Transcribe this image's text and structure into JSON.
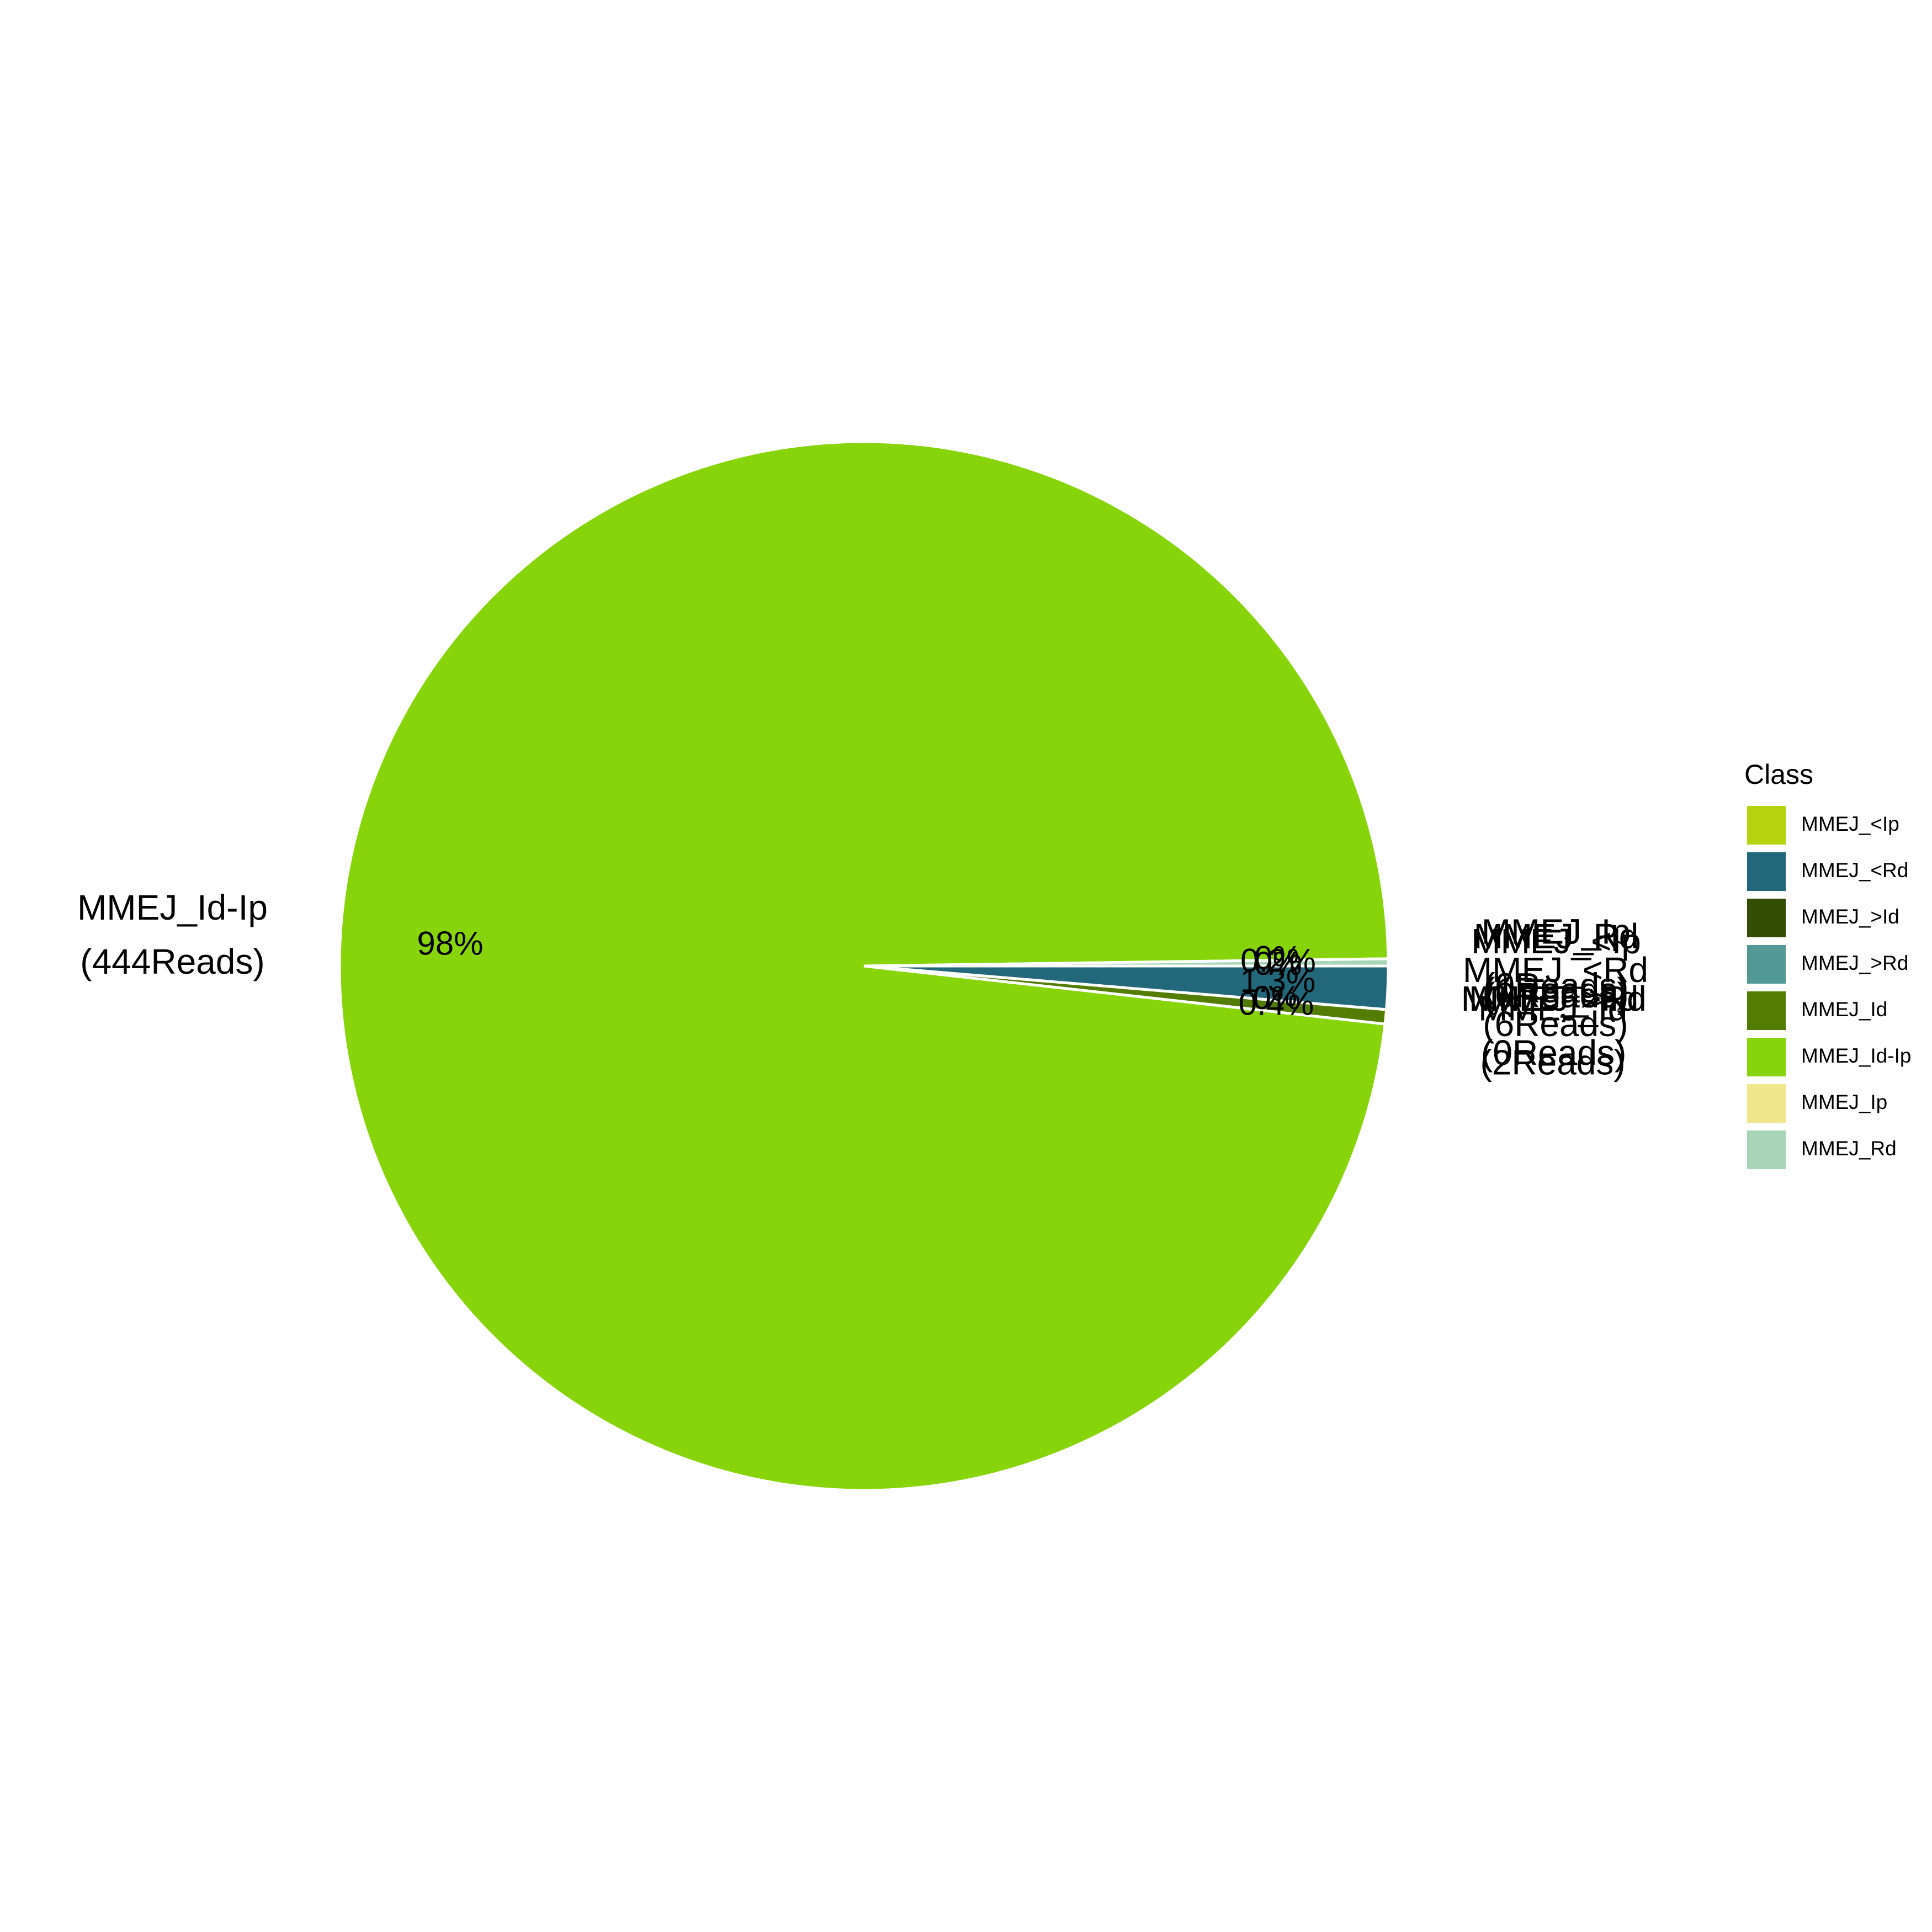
{
  "chart_data": {
    "type": "pie",
    "legend_title": "Class",
    "legend_position": "right",
    "slices": [
      {
        "name": "MMEJ_<Ip",
        "reads": 0,
        "reads_label": "(0Reads)",
        "percent_label": "0%",
        "color": "#B5D40F"
      },
      {
        "name": "MMEJ_<Rd",
        "reads": 6,
        "reads_label": "(6Reads)",
        "percent_label": "1.3%",
        "color": "#22687A"
      },
      {
        "name": "MMEJ_>Id",
        "reads": 0,
        "reads_label": "(0Reads)",
        "percent_label": "0%",
        "color": "#334D03"
      },
      {
        "name": "MMEJ_>Rd",
        "reads": 0,
        "reads_label": "(0Reads)",
        "percent_label": "0%",
        "color": "#529996"
      },
      {
        "name": "MMEJ_Id",
        "reads": 2,
        "reads_label": "(2Reads)",
        "percent_label": "0.4%",
        "color": "#527D02"
      },
      {
        "name": "MMEJ_Id-Ip",
        "reads": 444,
        "reads_label": "(444Reads)",
        "percent_label": "98%",
        "color": "#87D40A"
      },
      {
        "name": "MMEJ_Ip",
        "reads": 0,
        "reads_label": "(0Reads)",
        "percent_label": "0%",
        "color": "#F0E68C"
      },
      {
        "name": "MMEJ_Rd",
        "reads": 1,
        "reads_label": "(1Reads)",
        "percent_label": "0.2%",
        "color": "#A8D5B8"
      }
    ]
  }
}
